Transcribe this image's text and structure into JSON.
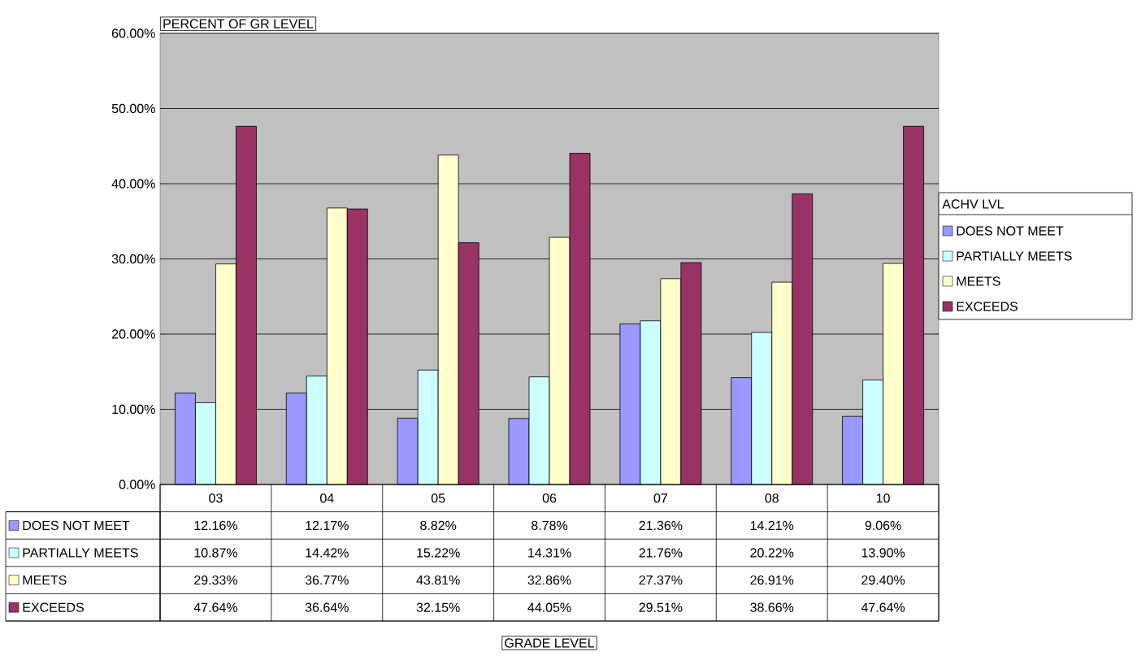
{
  "chart_data": {
    "type": "bar",
    "ylabel": "PERCENT OF GR LEVEL",
    "annotations": [
      "GRADE LEVEL"
    ],
    "legend_title": "ACHV LVL",
    "categories": [
      "03",
      "04",
      "05",
      "06",
      "07",
      "08",
      "10"
    ],
    "series": [
      {
        "name": "DOES NOT MEET",
        "color": "#9999ff",
        "values": [
          12.16,
          12.17,
          8.82,
          8.78,
          21.36,
          14.21,
          9.06
        ],
        "value_labels": [
          "12.16%",
          "12.17%",
          "8.82%",
          "8.78%",
          "21.36%",
          "14.21%",
          "9.06%"
        ]
      },
      {
        "name": "PARTIALLY MEETS",
        "color": "#ccffff",
        "values": [
          10.87,
          14.42,
          15.22,
          14.31,
          21.76,
          20.22,
          13.9
        ],
        "value_labels": [
          "10.87%",
          "14.42%",
          "15.22%",
          "14.31%",
          "21.76%",
          "20.22%",
          "13.90%"
        ]
      },
      {
        "name": "MEETS",
        "color": "#ffffcc",
        "values": [
          29.33,
          36.77,
          43.81,
          32.86,
          27.37,
          26.91,
          29.4
        ],
        "value_labels": [
          "29.33%",
          "36.77%",
          "43.81%",
          "32.86%",
          "27.37%",
          "26.91%",
          "29.40%"
        ]
      },
      {
        "name": "EXCEEDS",
        "color": "#993366",
        "values": [
          47.64,
          36.64,
          32.15,
          44.05,
          29.51,
          38.66,
          47.64
        ],
        "value_labels": [
          "47.64%",
          "36.64%",
          "32.15%",
          "44.05%",
          "29.51%",
          "38.66%",
          "47.64%"
        ]
      }
    ],
    "ylim": [
      0,
      60
    ],
    "yticks": [
      {
        "value": 0,
        "label": "0.00%"
      },
      {
        "value": 10,
        "label": "10.00%"
      },
      {
        "value": 20,
        "label": "20.00%"
      },
      {
        "value": 30,
        "label": "30.00%"
      },
      {
        "value": 40,
        "label": "40.00%"
      },
      {
        "value": 50,
        "label": "50.00%"
      },
      {
        "value": 60,
        "label": "60.00%"
      }
    ],
    "grid": "y",
    "legend": "right"
  }
}
